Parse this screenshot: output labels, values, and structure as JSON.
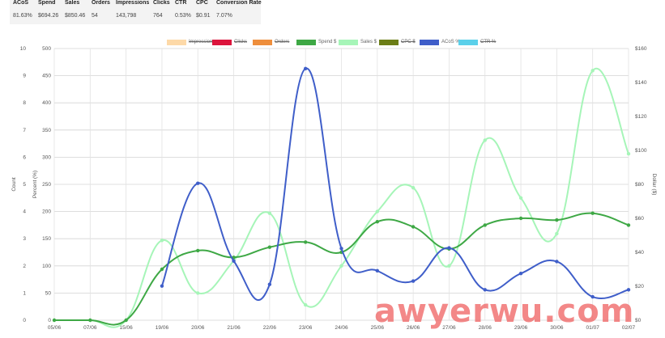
{
  "summary": {
    "columns": [
      {
        "header": "ACoS",
        "value": "81.63%"
      },
      {
        "header": "Spend",
        "value": "$694.26"
      },
      {
        "header": "Sales",
        "value": "$850.46"
      },
      {
        "header": "Orders",
        "value": "54"
      },
      {
        "header": "Impressions",
        "value": "143,798"
      },
      {
        "header": "Clicks",
        "value": "764"
      },
      {
        "header": "CTR",
        "value": "0.53%"
      },
      {
        "header": "CPC",
        "value": "$0.91"
      },
      {
        "header": "Conversion Rate",
        "value": "7.07%"
      }
    ]
  },
  "legend": [
    {
      "label": "Impressions",
      "color": "#fdd9a8",
      "hidden": true
    },
    {
      "label": "Clicks",
      "color": "#dc143c",
      "hidden": true
    },
    {
      "label": "Orders",
      "color": "#ee8e3c",
      "hidden": true
    },
    {
      "label": "Spend $",
      "color": "#3ea845",
      "hidden": false
    },
    {
      "label": "Sales $",
      "color": "#a6f5b8",
      "hidden": false
    },
    {
      "label": "CPC $",
      "color": "#6b7d16",
      "hidden": true
    },
    {
      "label": "ACoS %",
      "color": "#3f5ec9",
      "hidden": false
    },
    {
      "label": "CTR %",
      "color": "#5bd0ea",
      "hidden": true
    }
  ],
  "watermark": "awyerwu.com",
  "chart_data": {
    "type": "line",
    "categories": [
      "05/06",
      "07/06",
      "15/06",
      "19/06",
      "20/06",
      "21/06",
      "22/06",
      "23/06",
      "24/06",
      "25/06",
      "26/06",
      "27/06",
      "28/06",
      "29/06",
      "30/06",
      "01/07",
      "02/07"
    ],
    "axes": {
      "count": {
        "label": "Count",
        "ticks": [
          "0",
          "1",
          "2",
          "3",
          "4",
          "5",
          "6",
          "7",
          "8",
          "9",
          "10"
        ],
        "range": [
          0,
          10
        ]
      },
      "percent": {
        "label": "Percent (%)",
        "ticks": [
          "0",
          "50",
          "100",
          "150",
          "200",
          "250",
          "300",
          "350",
          "400",
          "450",
          "500"
        ],
        "range": [
          0,
          500
        ]
      },
      "dollar": {
        "label": "Dollar ($)",
        "ticks": [
          "$0",
          "$20",
          "$40",
          "$60",
          "$80",
          "$100",
          "$120",
          "$140",
          "$160"
        ],
        "range": [
          0,
          160
        ]
      }
    },
    "grid": true,
    "legend_position": "top",
    "series": [
      {
        "name": "Spend $",
        "axis": "dollar",
        "color": "#3ea845",
        "values": [
          0,
          0,
          0,
          30,
          41,
          37,
          43,
          46,
          40,
          58,
          55,
          42,
          56,
          60,
          59,
          63,
          56
        ]
      },
      {
        "name": "Sales $",
        "axis": "dollar",
        "color": "#a6f5b8",
        "values": [
          0,
          0,
          0,
          47,
          16,
          35,
          63,
          9,
          32,
          64,
          78,
          32,
          106,
          72,
          51,
          147,
          98
        ]
      },
      {
        "name": "ACoS %",
        "axis": "percent",
        "color": "#3f5ec9",
        "values": [
          null,
          null,
          null,
          63,
          252,
          109,
          66,
          463,
          132,
          91,
          72,
          133,
          56,
          86,
          108,
          43,
          56
        ]
      }
    ]
  }
}
